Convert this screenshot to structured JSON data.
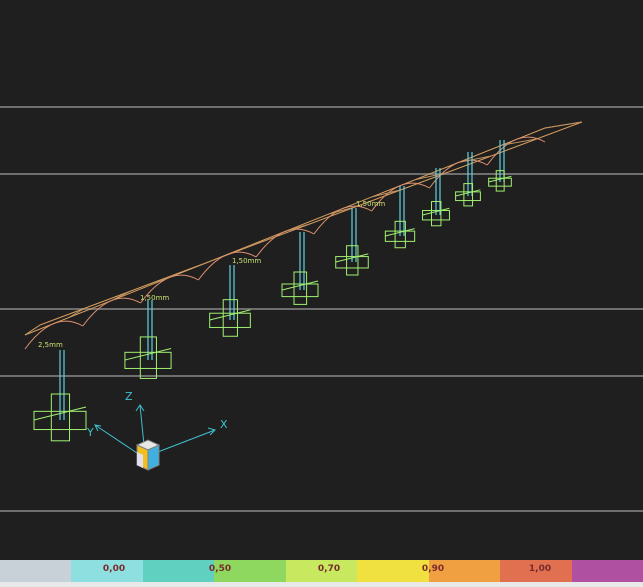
{
  "viewport": {
    "background": "#1f1f1f",
    "structure_color": "#a0f070",
    "column_color": "#60d0e0",
    "roof_color": "#d8a060"
  },
  "dimension_labels": [
    "2,5mm",
    "1,50mm",
    "1,50mm",
    "1,50mm"
  ],
  "axis_labels": {
    "x": "X",
    "y": "Y",
    "z": "Z"
  },
  "legend": {
    "labels": [
      "0,00",
      "0,50",
      "0,70",
      "0,90",
      "1,00"
    ],
    "colors": [
      "#c8d0d8",
      "#8ee0e0",
      "#60d0c0",
      "#8ed860",
      "#c8e860",
      "#f0e040",
      "#f0a040",
      "#e07050",
      "#b050a0"
    ]
  }
}
